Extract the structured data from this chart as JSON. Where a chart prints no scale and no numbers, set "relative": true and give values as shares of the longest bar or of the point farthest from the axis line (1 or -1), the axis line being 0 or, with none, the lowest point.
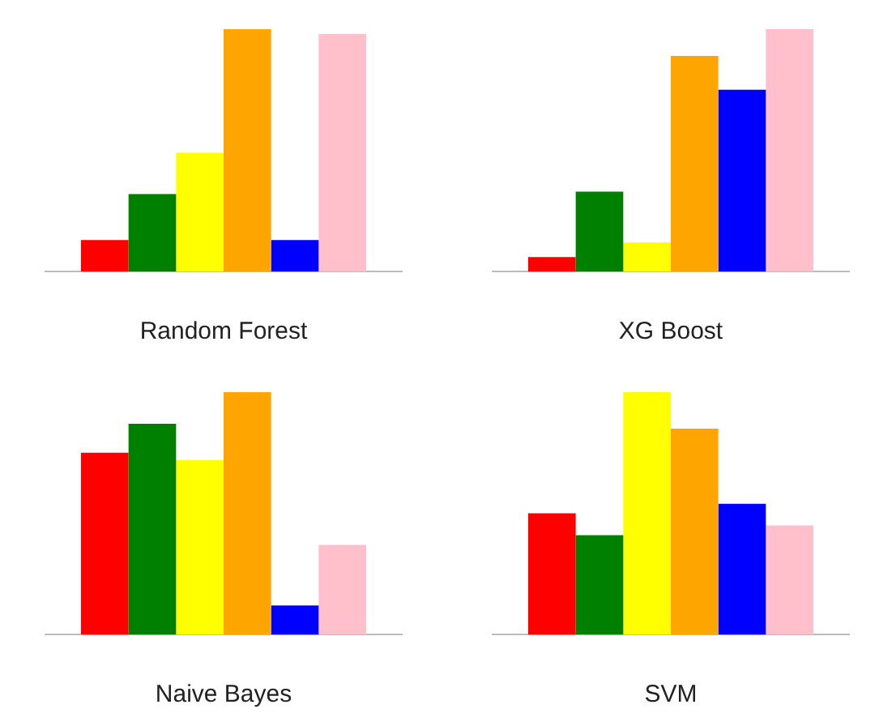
{
  "chart_data": [
    {
      "type": "bar",
      "title": "Random Forest",
      "relative": true,
      "categories": [
        null
      ],
      "legend": false,
      "series": [
        {
          "color": "#ff0000",
          "values": [
            0.13
          ]
        },
        {
          "color": "#008000",
          "values": [
            0.32
          ]
        },
        {
          "color": "#ffff00",
          "values": [
            0.49
          ]
        },
        {
          "color": "#ffa500",
          "values": [
            1
          ]
        },
        {
          "color": "#0000ff",
          "values": [
            0.13
          ]
        },
        {
          "color": "#ffc0cb",
          "values": [
            0.98
          ]
        }
      ]
    },
    {
      "type": "bar",
      "title": "XG Boost",
      "relative": true,
      "categories": [
        null
      ],
      "legend": false,
      "series": [
        {
          "color": "#ff0000",
          "values": [
            0.06
          ]
        },
        {
          "color": "#008000",
          "values": [
            0.33
          ]
        },
        {
          "color": "#ffff00",
          "values": [
            0.12
          ]
        },
        {
          "color": "#ffa500",
          "values": [
            0.89
          ]
        },
        {
          "color": "#0000ff",
          "values": [
            0.75
          ]
        },
        {
          "color": "#ffc0cb",
          "values": [
            1
          ]
        }
      ]
    },
    {
      "type": "bar",
      "title": "Naive Bayes",
      "relative": true,
      "categories": [
        null
      ],
      "legend": false,
      "series": [
        {
          "color": "#ff0000",
          "values": [
            0.75
          ]
        },
        {
          "color": "#008000",
          "values": [
            0.87
          ]
        },
        {
          "color": "#ffff00",
          "values": [
            0.72
          ]
        },
        {
          "color": "#ffa500",
          "values": [
            1
          ]
        },
        {
          "color": "#0000ff",
          "values": [
            0.12
          ]
        },
        {
          "color": "#ffc0cb",
          "values": [
            0.37
          ]
        }
      ]
    },
    {
      "type": "bar",
      "title": "SVM",
      "relative": true,
      "categories": [
        null
      ],
      "legend": false,
      "series": [
        {
          "color": "#ff0000",
          "values": [
            0.5
          ]
        },
        {
          "color": "#008000",
          "values": [
            0.41
          ]
        },
        {
          "color": "#ffff00",
          "values": [
            1
          ]
        },
        {
          "color": "#ffa500",
          "values": [
            0.85
          ]
        },
        {
          "color": "#0000ff",
          "values": [
            0.54
          ]
        },
        {
          "color": "#ffc0cb",
          "values": [
            0.45
          ]
        }
      ]
    }
  ]
}
